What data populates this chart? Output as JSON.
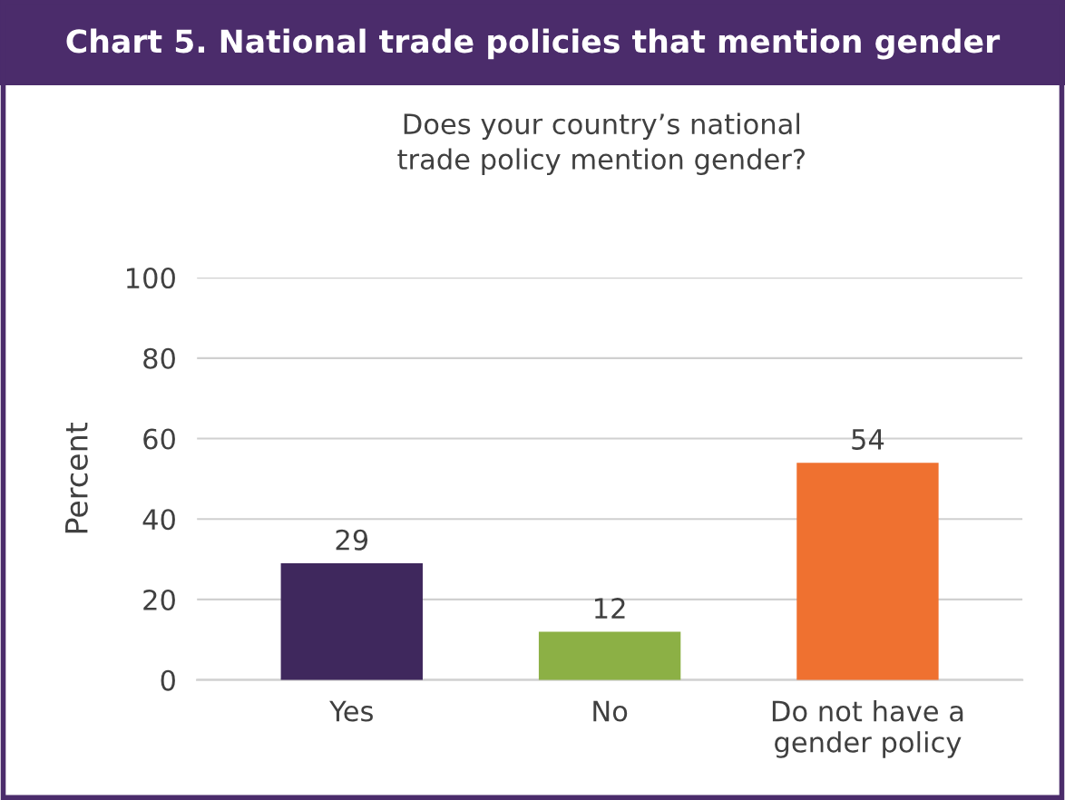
{
  "chart_data": {
    "type": "bar",
    "title": "Chart 5. National trade policies that mention gender",
    "subtitle": "Does your country’s national\ntrade policy mention gender?",
    "ylabel": "Percent",
    "categories": [
      "Yes",
      "No",
      "Do not have a\ngender policy"
    ],
    "values": [
      29,
      12,
      54
    ],
    "colors": [
      "#3f285d",
      "#8cb045",
      "#ef7130"
    ],
    "ylim": [
      0,
      100
    ],
    "yticks": [
      0,
      20,
      40,
      60,
      80,
      100
    ],
    "grid": "y",
    "data_labels": true
  }
}
